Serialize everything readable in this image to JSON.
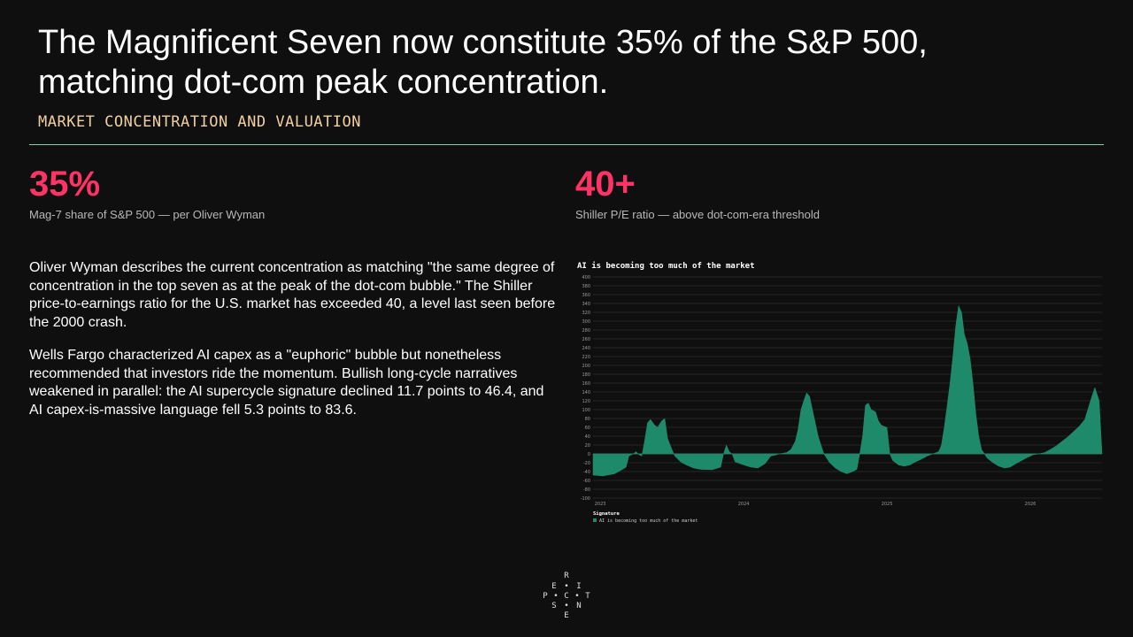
{
  "header": {
    "title_line1": "The Magnificent Seven now constitute 35% of the S&P 500,",
    "title_line2": "matching dot-com peak concentration.",
    "section_label": "MARKET CONCENTRATION AND VALUATION"
  },
  "stats": [
    {
      "value": "35%",
      "label": "Mag-7 share of S&P 500 — per Oliver Wyman"
    },
    {
      "value": "40+",
      "label": "Shiller P/E ratio — above dot-com-era threshold"
    }
  ],
  "body": {
    "paragraph1": "Oliver Wyman describes the current concentration as matching \"the same degree of concentration in the top seven as at the peak of the dot-com bubble.\" The Shiller price-to-earnings ratio for the U.S. market has exceeded 40, a level last seen before the 2000 crash.",
    "paragraph2": "Wells Fargo characterized AI capex as a \"euphoric\" bubble but nonetheless recommended that investors ride the momentum. Bullish long-cycle narratives weakened in parallel: the AI supercycle signature declined 11.7 points to 46.4, and AI capex-is-massive language fell 5.3 points to 83.6."
  },
  "logo": {
    "letters": [
      "R",
      "E",
      "I",
      "P",
      "C",
      "T",
      "S",
      "N",
      "E"
    ]
  },
  "colors": {
    "accent": "#ff3366",
    "rule": "#6fd6b2",
    "series": "#1f8a6a",
    "label_gold": "#f0cfa0"
  },
  "chart_data": {
    "type": "area",
    "title": "AI is becoming too much of the market",
    "legend_title": "Signature",
    "legend_placement": "bottom-left",
    "series_name": "AI is becoming too much of the market",
    "ylim": [
      -100,
      400
    ],
    "yticks": [
      -100,
      -80,
      -60,
      -40,
      -20,
      0,
      20,
      40,
      60,
      80,
      100,
      120,
      140,
      160,
      180,
      200,
      220,
      240,
      260,
      280,
      300,
      320,
      340,
      360,
      380,
      400
    ],
    "xlim": [
      2022.95,
      2026.5
    ],
    "xticks": [
      2023,
      2024,
      2025,
      2026
    ],
    "grid": true,
    "points": [
      [
        2022.95,
        -48
      ],
      [
        2023.02,
        -50
      ],
      [
        2023.1,
        -45
      ],
      [
        2023.14,
        -38
      ],
      [
        2023.18,
        -30
      ],
      [
        2023.2,
        -5
      ],
      [
        2023.23,
        0
      ],
      [
        2023.25,
        5
      ],
      [
        2023.27,
        -2
      ],
      [
        2023.29,
        -5
      ],
      [
        2023.31,
        30
      ],
      [
        2023.33,
        70
      ],
      [
        2023.35,
        78
      ],
      [
        2023.38,
        65
      ],
      [
        2023.4,
        60
      ],
      [
        2023.43,
        75
      ],
      [
        2023.45,
        80
      ],
      [
        2023.47,
        35
      ],
      [
        2023.5,
        10
      ],
      [
        2023.52,
        -5
      ],
      [
        2023.56,
        -18
      ],
      [
        2023.6,
        -25
      ],
      [
        2023.65,
        -32
      ],
      [
        2023.7,
        -35
      ],
      [
        2023.78,
        -36
      ],
      [
        2023.84,
        -30
      ],
      [
        2023.86,
        0
      ],
      [
        2023.88,
        20
      ],
      [
        2023.9,
        5
      ],
      [
        2023.92,
        0
      ],
      [
        2023.94,
        -18
      ],
      [
        2024.0,
        -25
      ],
      [
        2024.05,
        -30
      ],
      [
        2024.1,
        -32
      ],
      [
        2024.15,
        -22
      ],
      [
        2024.19,
        -5
      ],
      [
        2024.22,
        -3
      ],
      [
        2024.25,
        0
      ],
      [
        2024.3,
        3
      ],
      [
        2024.33,
        10
      ],
      [
        2024.36,
        28
      ],
      [
        2024.38,
        55
      ],
      [
        2024.4,
        100
      ],
      [
        2024.42,
        120
      ],
      [
        2024.44,
        138
      ],
      [
        2024.46,
        130
      ],
      [
        2024.48,
        100
      ],
      [
        2024.5,
        70
      ],
      [
        2024.52,
        40
      ],
      [
        2024.54,
        20
      ],
      [
        2024.56,
        0
      ],
      [
        2024.6,
        -20
      ],
      [
        2024.64,
        -32
      ],
      [
        2024.68,
        -40
      ],
      [
        2024.72,
        -45
      ],
      [
        2024.76,
        -40
      ],
      [
        2024.79,
        -35
      ],
      [
        2024.81,
        0
      ],
      [
        2024.83,
        40
      ],
      [
        2024.85,
        110
      ],
      [
        2024.87,
        115
      ],
      [
        2024.89,
        100
      ],
      [
        2024.92,
        95
      ],
      [
        2024.94,
        75
      ],
      [
        2024.96,
        65
      ],
      [
        2024.98,
        62
      ],
      [
        2025.0,
        60
      ],
      [
        2025.02,
        0
      ],
      [
        2025.04,
        -15
      ],
      [
        2025.08,
        -25
      ],
      [
        2025.12,
        -28
      ],
      [
        2025.16,
        -25
      ],
      [
        2025.2,
        -18
      ],
      [
        2025.24,
        -12
      ],
      [
        2025.28,
        -5
      ],
      [
        2025.32,
        0
      ],
      [
        2025.36,
        5
      ],
      [
        2025.38,
        20
      ],
      [
        2025.4,
        60
      ],
      [
        2025.42,
        110
      ],
      [
        2025.44,
        160
      ],
      [
        2025.46,
        220
      ],
      [
        2025.48,
        290
      ],
      [
        2025.5,
        335
      ],
      [
        2025.52,
        320
      ],
      [
        2025.54,
        270
      ],
      [
        2025.56,
        250
      ],
      [
        2025.58,
        215
      ],
      [
        2025.6,
        160
      ],
      [
        2025.62,
        90
      ],
      [
        2025.64,
        40
      ],
      [
        2025.66,
        10
      ],
      [
        2025.68,
        0
      ],
      [
        2025.7,
        -10
      ],
      [
        2025.74,
        -20
      ],
      [
        2025.78,
        -28
      ],
      [
        2025.82,
        -32
      ],
      [
        2025.86,
        -30
      ],
      [
        2025.9,
        -22
      ],
      [
        2025.94,
        -15
      ],
      [
        2025.98,
        -8
      ],
      [
        2026.02,
        -2
      ],
      [
        2026.06,
        0
      ],
      [
        2026.1,
        3
      ],
      [
        2026.14,
        10
      ],
      [
        2026.18,
        18
      ],
      [
        2026.22,
        28
      ],
      [
        2026.26,
        38
      ],
      [
        2026.3,
        50
      ],
      [
        2026.34,
        62
      ],
      [
        2026.38,
        78
      ],
      [
        2026.42,
        120
      ],
      [
        2026.45,
        150
      ],
      [
        2026.48,
        120
      ],
      [
        2026.5,
        0
      ]
    ]
  }
}
